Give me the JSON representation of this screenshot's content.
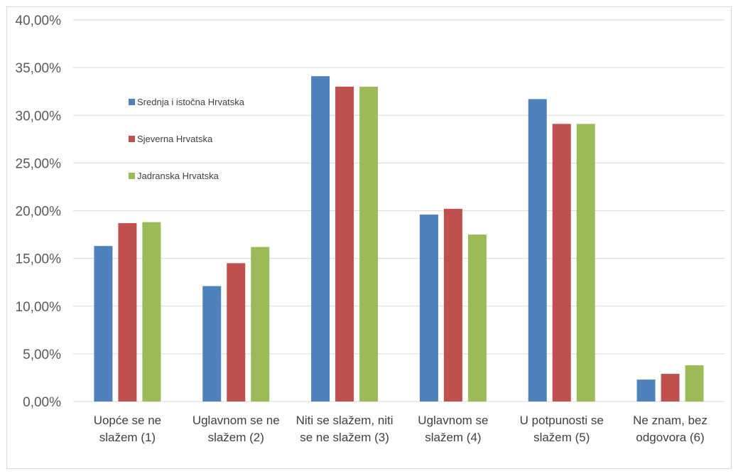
{
  "chart_data": {
    "type": "bar",
    "title": "",
    "xlabel": "",
    "ylabel": "",
    "ylim": [
      0,
      40
    ],
    "yticks": [
      "0,00%",
      "5,00%",
      "10,00%",
      "15,00%",
      "20,00%",
      "25,00%",
      "30,00%",
      "35,00%",
      "40,00%"
    ],
    "categories": [
      [
        "Uopće se ne",
        "slažem (1)"
      ],
      [
        "Uglavnom se ne",
        "slažem (2)"
      ],
      [
        "Niti se slažem, niti",
        "se ne slažem (3)"
      ],
      [
        "Uglavnom se",
        "slažem (4)"
      ],
      [
        "U potpunosti se",
        "slažem (5)"
      ],
      [
        "Ne znam, bez",
        "odgovora (6)"
      ]
    ],
    "series": [
      {
        "name": "Srednja i istočna Hrvatska",
        "color": "#4f81bd",
        "values": [
          16.3,
          12.1,
          34.1,
          19.6,
          31.7,
          2.3
        ]
      },
      {
        "name": "Sjeverna Hrvatska",
        "color": "#c0504d",
        "values": [
          18.7,
          14.5,
          33.0,
          20.2,
          29.1,
          2.9
        ]
      },
      {
        "name": "Jadranska Hrvatska",
        "color": "#9bbb59",
        "values": [
          18.8,
          16.2,
          33.0,
          17.5,
          29.1,
          3.8
        ]
      }
    ],
    "grid": true,
    "legend_position": "top-left inside"
  }
}
